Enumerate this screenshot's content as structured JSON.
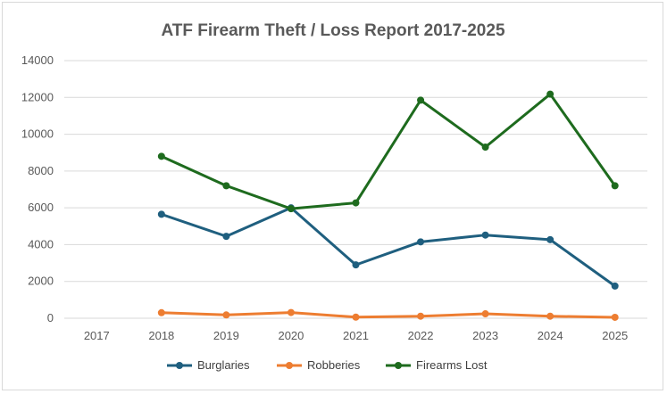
{
  "chart_data": {
    "type": "line",
    "title": "ATF Firearm Theft / Loss Report 2017-2025",
    "xlabel": "",
    "ylabel": "",
    "categories": [
      "2017",
      "2018",
      "2019",
      "2020",
      "2021",
      "2022",
      "2023",
      "2024",
      "2025"
    ],
    "ylim": [
      0,
      14000
    ],
    "yticks": [
      "0",
      "2000",
      "4000",
      "6000",
      "8000",
      "10000",
      "12000",
      "14000"
    ],
    "grid": true,
    "legend_position": "bottom",
    "series": [
      {
        "name": "Burglaries",
        "color": "#1f5f7f",
        "values": [
          null,
          5650,
          4450,
          6000,
          2900,
          4150,
          4520,
          4270,
          1750
        ]
      },
      {
        "name": "Robberies",
        "color": "#ed7d31",
        "values": [
          null,
          300,
          180,
          310,
          60,
          110,
          240,
          110,
          50
        ]
      },
      {
        "name": "Firearms Lost",
        "color": "#1e6b1e",
        "values": [
          null,
          8800,
          7200,
          5950,
          6270,
          11850,
          9300,
          12180,
          7200
        ]
      }
    ]
  }
}
